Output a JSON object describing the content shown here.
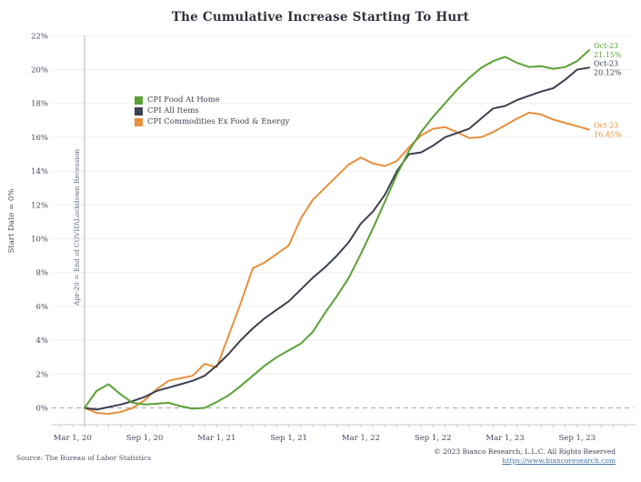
{
  "chart_data": {
    "type": "line",
    "title": "The Cumulative Increase Starting To Hurt",
    "ylabel": "Start Date = 0%",
    "ylim": [
      0,
      22
    ],
    "y_tick_step": 2,
    "y_tick_suffix": "%",
    "grid": "horizontal-light",
    "zero_line_style": "dashed-gray",
    "legend_position": "inside-upper-left",
    "x_tick_labels": [
      "Mar 1, 20",
      "Sep 1, 20",
      "Mar 1, 21",
      "Sep 1, 21",
      "Mar 1, 22",
      "Sep 1, 22",
      "Mar 1, 23",
      "Sep 1, 23"
    ],
    "annotation": {
      "text": "Apr-20 = End of COVID\\Lockdown Recession",
      "month": "Apr-20"
    },
    "months": [
      "Apr-20",
      "May-20",
      "Jun-20",
      "Jul-20",
      "Aug-20",
      "Sep-20",
      "Oct-20",
      "Nov-20",
      "Dec-20",
      "Jan-21",
      "Feb-21",
      "Mar-21",
      "Apr-21",
      "May-21",
      "Jun-21",
      "Jul-21",
      "Aug-21",
      "Sep-21",
      "Oct-21",
      "Nov-21",
      "Dec-21",
      "Jan-22",
      "Feb-22",
      "Mar-22",
      "Apr-22",
      "May-22",
      "Jun-22",
      "Jul-22",
      "Aug-22",
      "Sep-22",
      "Oct-22",
      "Nov-22",
      "Dec-22",
      "Jan-23",
      "Feb-23",
      "Mar-23",
      "Apr-23",
      "May-23",
      "Jun-23",
      "Jul-23",
      "Aug-23",
      "Sep-23",
      "Oct-23"
    ],
    "series": [
      {
        "name": "CPI Food At Home",
        "color": "#5ba136",
        "end_label": {
          "date": "Oct-23",
          "value": "21.15%"
        },
        "values": [
          0,
          1.0,
          1.4,
          0.8,
          0.3,
          0.2,
          0.25,
          0.3,
          0.1,
          -0.05,
          0.0,
          0.35,
          0.75,
          1.3,
          1.9,
          2.5,
          3.0,
          3.4,
          3.8,
          4.5,
          5.6,
          6.6,
          7.7,
          9.1,
          10.6,
          12.2,
          13.8,
          15.2,
          16.3,
          17.2,
          18.0,
          18.8,
          19.5,
          20.1,
          20.5,
          20.75,
          20.4,
          20.15,
          20.2,
          20.05,
          20.15,
          20.5,
          21.15
        ]
      },
      {
        "name": "CPI All Items",
        "color": "#3c4150",
        "end_label": {
          "date": "Oct-23",
          "value": "20.12%"
        },
        "values": [
          0,
          -0.1,
          0.05,
          0.2,
          0.4,
          0.65,
          1.0,
          1.2,
          1.4,
          1.6,
          1.9,
          2.5,
          3.2,
          4.0,
          4.7,
          5.3,
          5.8,
          6.3,
          7.0,
          7.7,
          8.3,
          9.0,
          9.8,
          10.9,
          11.6,
          12.6,
          14.0,
          15.0,
          15.1,
          15.5,
          16.0,
          16.25,
          16.5,
          17.1,
          17.7,
          17.85,
          18.2,
          18.45,
          18.7,
          18.9,
          19.4,
          20.0,
          20.12
        ]
      },
      {
        "name": "CPI Commodities Ex Food & Energy",
        "color": "#e88f3c",
        "end_label": {
          "date": "Oct-23",
          "value": "16.45%"
        },
        "values": [
          0,
          -0.3,
          -0.35,
          -0.25,
          0.0,
          0.45,
          1.1,
          1.6,
          1.75,
          1.9,
          2.6,
          2.4,
          4.3,
          6.2,
          8.25,
          8.6,
          9.1,
          9.6,
          11.2,
          12.3,
          13.0,
          13.7,
          14.4,
          14.8,
          14.45,
          14.3,
          14.6,
          15.4,
          16.1,
          16.5,
          16.6,
          16.3,
          15.95,
          16.0,
          16.3,
          16.7,
          17.1,
          17.45,
          17.35,
          17.05,
          16.85,
          16.65,
          16.45
        ]
      }
    ]
  },
  "footer": {
    "source": "Source: The Bureau of Labor Statistics",
    "copyright": "© 2023 Bianco Research, L.L.C. All Rights Reserved",
    "link": "https://www.biancoresearch.com"
  }
}
